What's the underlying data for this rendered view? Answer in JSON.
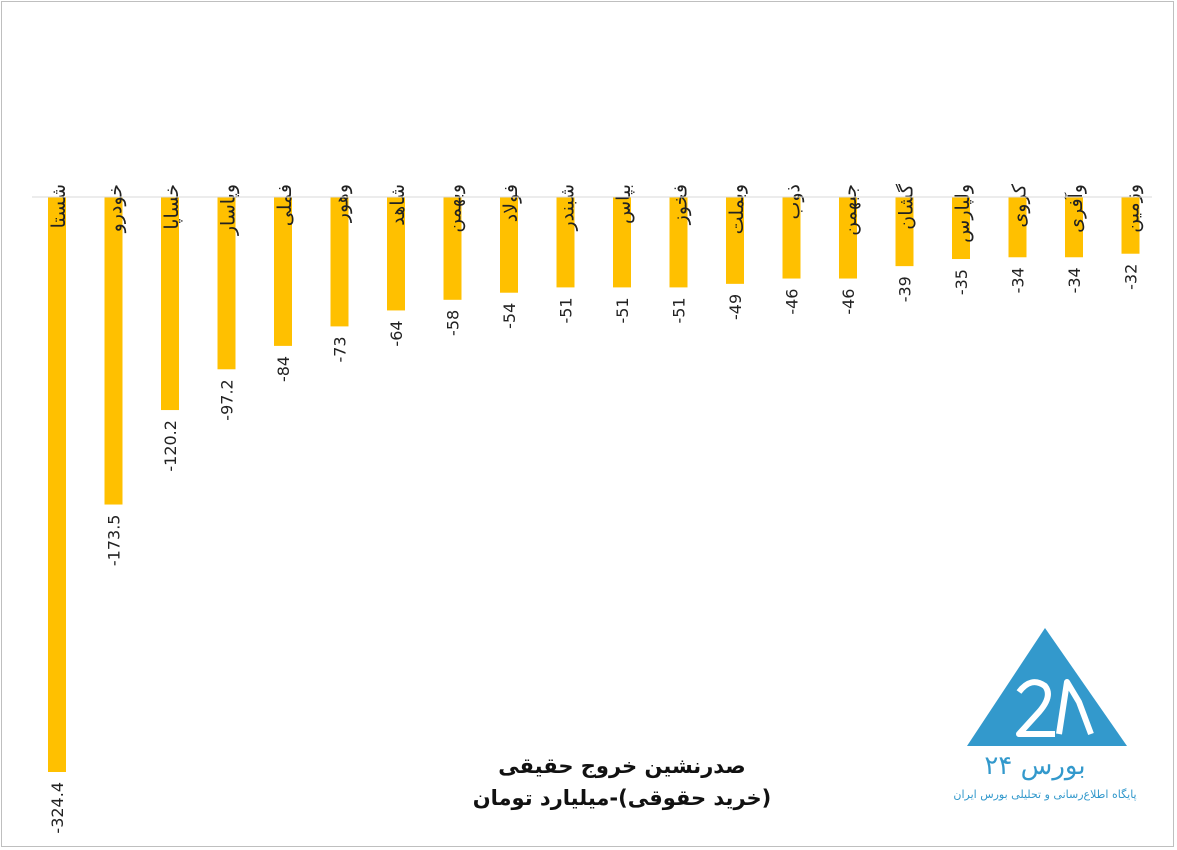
{
  "chart_data": {
    "type": "bar",
    "orientation": "vertical",
    "title_line1": "صدرنشین خروج حقیقی",
    "title_line2": "(خرید حقوقی)-میلیارد تومان",
    "categories": [
      "شستا",
      "خودرو",
      "خساپا",
      "وپاسار",
      "فملی",
      "وهور",
      "شاهد",
      "وبهمن",
      "فولاد",
      "شبندر",
      "بپاس",
      "فخوز",
      "وبملت",
      "ذوب",
      "جبهمن",
      "گشان",
      "ولپارس",
      "کروی",
      "وآفری",
      "وزمین"
    ],
    "values": [
      -324.4,
      -173.5,
      -120.2,
      -97.2,
      -84,
      -73,
      -64,
      -58,
      -54,
      -51,
      -51,
      -51,
      -49,
      -46,
      -46,
      -39,
      -35,
      -34,
      -34,
      -32
    ],
    "value_labels": [
      "-324.4",
      "-173.5",
      "-120.2",
      "-97.2",
      "-84",
      "-73",
      "-64",
      "-58",
      "-54",
      "-51",
      "-51",
      "-51",
      "-49",
      "-46",
      "-46",
      "-39",
      "-35",
      "-34",
      "-34",
      "-32"
    ],
    "ylim": [
      -324.4,
      0
    ],
    "bar_color": "#FFC000",
    "grid": false,
    "legend": "none"
  },
  "logo": {
    "name": "بورس ۲۴",
    "tagline": "پایگاه اطلاع‌رسانی و تحلیلی بورس ایران",
    "color": "#3399cc"
  }
}
